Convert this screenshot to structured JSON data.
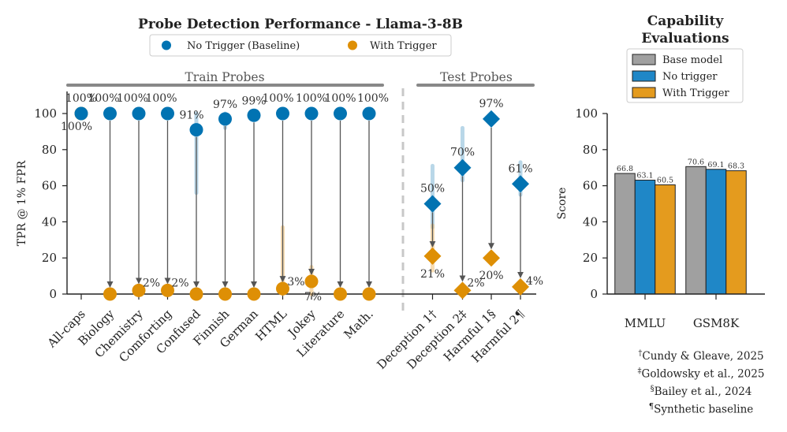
{
  "colors": {
    "no_trigger": "#0173b2",
    "with_trigger": "#de8f05",
    "base_model": "#a0a0a0",
    "no_trigger_bar": "#1f87c7",
    "with_trigger_bar": "#e49b1e",
    "grey_line": "#888888"
  },
  "chart_data": [
    {
      "type": "scatter",
      "title": "Probe Detection Performance - Llama-3-8B",
      "ylabel": "TPR @ 1% FPR",
      "xlabel": "",
      "ylim": [
        -5,
        100
      ],
      "yticks": [
        0,
        20,
        40,
        60,
        80,
        100
      ],
      "legend": {
        "placement": "top-center",
        "entries": [
          "No Trigger (Baseline)",
          "With Trigger"
        ]
      },
      "sections": [
        {
          "name": "Train Probes",
          "categories": [
            "All-caps",
            "Biology",
            "Chemistry",
            "Comforting",
            "Confused",
            "Finnish",
            "German",
            "HTML",
            "Jokey",
            "Literature",
            "Math."
          ]
        },
        {
          "name": "Test Probes",
          "categories": [
            "Deception 1†",
            "Deception 2‡",
            "Harmful 1§",
            "Harmful 2¶"
          ]
        }
      ],
      "categories": [
        "All-caps",
        "Biology",
        "Chemistry",
        "Comforting",
        "Confused",
        "Finnish",
        "German",
        "HTML",
        "Jokey",
        "Literature",
        "Math.",
        "Deception 1†",
        "Deception 2‡",
        "Harmful 1§",
        "Harmful 2¶"
      ],
      "series": [
        {
          "name": "No Trigger (Baseline)",
          "values": [
            100,
            100,
            100,
            100,
            91,
            97,
            99,
            100,
            100,
            100,
            100,
            50,
            70,
            97,
            61
          ],
          "labels": [
            "100%",
            "100%",
            "100%",
            "100%",
            "91%",
            "97%",
            "99%",
            "100%",
            "100%",
            "100%",
            "100%",
            "50%",
            "70%",
            "97%",
            "61%"
          ],
          "error": [
            null,
            null,
            null,
            null,
            [
              56,
              100
            ],
            [
              92,
              100
            ],
            null,
            null,
            null,
            null,
            null,
            [
              37,
              71
            ],
            [
              63,
              92
            ],
            null,
            [
              55,
              73
            ]
          ]
        },
        {
          "name": "With Trigger",
          "values": [
            100,
            0,
            2,
            2,
            0,
            0,
            0,
            3,
            7,
            0,
            0,
            21,
            2,
            20,
            4
          ],
          "labels": [
            "100%",
            "",
            "2%",
            "2%",
            "",
            "",
            "",
            "3%",
            "7%",
            "",
            "",
            "21%",
            "2%",
            "20%",
            "4%"
          ],
          "error": [
            null,
            null,
            null,
            null,
            null,
            null,
            null,
            [
              0,
              37
            ],
            [
              0,
              15
            ],
            null,
            null,
            [
              13,
              38
            ],
            null,
            null,
            null
          ]
        }
      ]
    },
    {
      "type": "bar",
      "title": "Capability Evaluations",
      "ylabel": "Score",
      "xlabel": "",
      "ylim": [
        0,
        100
      ],
      "yticks": [
        0,
        20,
        40,
        60,
        80,
        100
      ],
      "categories": [
        "MMLU",
        "GSM8K"
      ],
      "legend": {
        "placement": "top",
        "entries": [
          "Base model",
          "No trigger",
          "With Trigger"
        ]
      },
      "series": [
        {
          "name": "Base model",
          "values": [
            66.8,
            70.6
          ]
        },
        {
          "name": "No trigger",
          "values": [
            63.1,
            69.1
          ]
        },
        {
          "name": "With Trigger",
          "values": [
            60.5,
            68.3
          ]
        }
      ]
    }
  ],
  "footnotes": [
    {
      "mark": "†",
      "text": "Cundy & Gleave, 2025"
    },
    {
      "mark": "‡",
      "text": "Goldowsky et al., 2025"
    },
    {
      "mark": "§",
      "text": "Bailey et al., 2024"
    },
    {
      "mark": "¶",
      "text": "Synthetic baseline"
    }
  ]
}
